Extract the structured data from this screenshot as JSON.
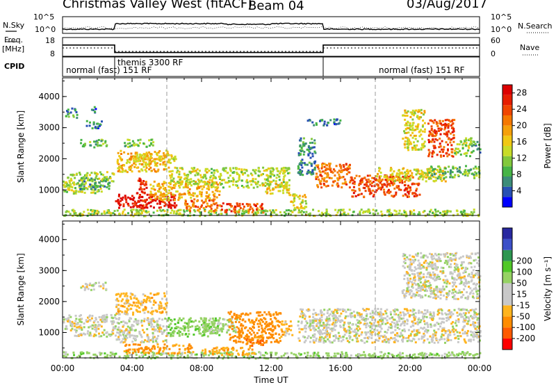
{
  "header": {
    "title": "Christmas Valley West (fitACF)",
    "beam": "Beam 04",
    "date": "03/Aug/2017"
  },
  "top_panels": {
    "nsky_label": "N.Sky",
    "nsearch_label": "N.Search",
    "noise_ticks": [
      "10^5",
      "10^0"
    ],
    "freq_label_1": "Freq.",
    "freq_label_2": "[MHz]",
    "freq_ticks": [
      "18",
      "8"
    ],
    "nave_label": "Nave",
    "nave_ticks": [
      "60",
      "0"
    ],
    "cpid_label": "CPID",
    "cpid_segments": [
      {
        "start": 0,
        "end": 3,
        "label": "normal (fast) 151 RF"
      },
      {
        "start": 3,
        "end": 15,
        "label": "themis 3300 RF"
      },
      {
        "start": 15,
        "end": 24,
        "label": "normal (fast) 151 RF"
      }
    ],
    "freq_mhz": [
      {
        "start": 0,
        "end": 3,
        "value": 14
      },
      {
        "start": 3,
        "end": 15,
        "value": 10
      },
      {
        "start": 15,
        "end": 24,
        "value": 14
      }
    ]
  },
  "color_palettes": {
    "power": [
      "#0000ff",
      "#2850b4",
      "#3c8c78",
      "#46b446",
      "#82c83c",
      "#c8dc28",
      "#f0c814",
      "#f5a00a",
      "#f57800",
      "#f04600",
      "#e61e00",
      "#dc0000"
    ],
    "velocity": [
      "#ff0000",
      "#ff5a00",
      "#ff8c00",
      "#ffb41e",
      "#c8c8c8",
      "#c8c8c8",
      "#96d264",
      "#50c828",
      "#2d9650",
      "#3c50c8",
      "#2828a0"
    ]
  },
  "chart_data": [
    {
      "type": "heatmap",
      "title": "",
      "xlabel": "Time UT",
      "ylabel": "Slant Range [km]",
      "x_ticks": [
        "00:00",
        "04:00",
        "08:00",
        "12:00",
        "16:00",
        "20:00",
        "00:00"
      ],
      "y_ticks": [
        "1000",
        "2000",
        "3000",
        "4000"
      ],
      "xlim_hours": [
        0,
        24
      ],
      "ylim_km": [
        180,
        4600
      ],
      "colorbar": {
        "label": "Power [dB]",
        "ticks": [
          "4",
          "8",
          "12",
          "16",
          "20",
          "24",
          "28"
        ],
        "range": [
          0,
          30
        ]
      },
      "regions": [
        {
          "t0": 0.0,
          "t1": 24.0,
          "r0": 190,
          "r1": 400,
          "value": 12
        },
        {
          "t0": 0.0,
          "t1": 2.2,
          "r0": 900,
          "r1": 1600,
          "value": 13
        },
        {
          "t0": 1.0,
          "t1": 2.5,
          "r0": 2400,
          "r1": 2650,
          "value": 9
        },
        {
          "t0": 0.1,
          "t1": 0.8,
          "r0": 3300,
          "r1": 3650,
          "value": 7
        },
        {
          "t0": 1.2,
          "t1": 2.2,
          "r0": 3000,
          "r1": 3250,
          "value": 6
        },
        {
          "t0": 1.6,
          "t1": 2.1,
          "r0": 3500,
          "r1": 3700,
          "value": 6
        },
        {
          "t0": 0.9,
          "t1": 2.7,
          "r0": 1050,
          "r1": 1450,
          "value": 8
        },
        {
          "t0": 2.2,
          "t1": 2.9,
          "r0": 1300,
          "r1": 1650,
          "value": 12
        },
        {
          "t0": 3.1,
          "t1": 6.0,
          "r0": 1600,
          "r1": 2300,
          "value": 17
        },
        {
          "t0": 3.5,
          "t1": 5.2,
          "r0": 2400,
          "r1": 2650,
          "value": 11
        },
        {
          "t0": 4.0,
          "t1": 6.5,
          "r0": 1900,
          "r1": 2200,
          "value": 16
        },
        {
          "t0": 4.2,
          "t1": 4.8,
          "r0": 400,
          "r1": 1400,
          "value": 26
        },
        {
          "t0": 3.0,
          "t1": 6.5,
          "r0": 450,
          "r1": 900,
          "value": 28
        },
        {
          "t0": 5.0,
          "t1": 9.0,
          "r0": 700,
          "r1": 1300,
          "value": 18
        },
        {
          "t0": 6.0,
          "t1": 8.5,
          "r0": 1200,
          "r1": 1750,
          "value": 14
        },
        {
          "t0": 8.5,
          "t1": 13.0,
          "r0": 1100,
          "r1": 1750,
          "value": 13
        },
        {
          "t0": 9.0,
          "t1": 11.5,
          "r0": 300,
          "r1": 600,
          "value": 24
        },
        {
          "t0": 7.0,
          "t1": 9.0,
          "r0": 350,
          "r1": 700,
          "value": 22
        },
        {
          "t0": 11.5,
          "t1": 13.0,
          "r0": 900,
          "r1": 1300,
          "value": 15
        },
        {
          "t0": 13.0,
          "t1": 14.0,
          "r0": 400,
          "r1": 900,
          "value": 15
        },
        {
          "t0": 13.5,
          "t1": 14.5,
          "r0": 1500,
          "r1": 2700,
          "value": 7
        },
        {
          "t0": 14.5,
          "t1": 16.5,
          "r0": 1100,
          "r1": 1900,
          "value": 22
        },
        {
          "t0": 16.5,
          "t1": 20.5,
          "r0": 800,
          "r1": 1500,
          "value": 24
        },
        {
          "t0": 18.0,
          "t1": 22.0,
          "r0": 1300,
          "r1": 1750,
          "value": 15
        },
        {
          "t0": 21.0,
          "t1": 24.0,
          "r0": 1400,
          "r1": 1800,
          "value": 10
        },
        {
          "t0": 19.5,
          "t1": 20.8,
          "r0": 2300,
          "r1": 3600,
          "value": 15
        },
        {
          "t0": 21.0,
          "t1": 22.5,
          "r0": 2100,
          "r1": 3300,
          "value": 24
        },
        {
          "t0": 22.5,
          "t1": 23.5,
          "r0": 2100,
          "r1": 2700,
          "value": 12
        },
        {
          "t0": 23.5,
          "t1": 24.0,
          "r0": 2200,
          "r1": 2600,
          "value": 8
        },
        {
          "t0": 14.0,
          "t1": 16.0,
          "r0": 3100,
          "r1": 3300,
          "value": 6
        }
      ]
    },
    {
      "type": "heatmap",
      "title": "",
      "xlabel": "Time UT",
      "ylabel": "Slant Range [km]",
      "x_ticks": [
        "00:00",
        "04:00",
        "08:00",
        "12:00",
        "16:00",
        "20:00",
        "00:00"
      ],
      "y_ticks": [
        "1000",
        "2000",
        "3000",
        "4000"
      ],
      "xlim_hours": [
        0,
        24
      ],
      "ylim_km": [
        180,
        4600
      ],
      "colorbar": {
        "label": "Velocity [m s⁻¹]",
        "ticks": [
          "-200",
          "-100",
          "-50",
          "-15",
          "15",
          "50",
          "100",
          "200"
        ],
        "range": [
          -250,
          250
        ]
      },
      "regions": [
        {
          "t0": 0.0,
          "t1": 24.0,
          "r0": 190,
          "r1": 400,
          "value": 30
        },
        {
          "t0": 0.0,
          "t1": 3.0,
          "r0": 900,
          "r1": 1600,
          "value": 0
        },
        {
          "t0": 1.0,
          "t1": 2.5,
          "r0": 2400,
          "r1": 2650,
          "value": 0
        },
        {
          "t0": 3.0,
          "t1": 6.0,
          "r0": 1600,
          "r1": 2300,
          "value": -30
        },
        {
          "t0": 3.0,
          "t1": 6.0,
          "r0": 700,
          "r1": 1500,
          "value": 0
        },
        {
          "t0": 3.5,
          "t1": 7.5,
          "r0": 350,
          "r1": 650,
          "value": -60
        },
        {
          "t0": 6.0,
          "t1": 9.0,
          "r0": 900,
          "r1": 1500,
          "value": 40
        },
        {
          "t0": 8.0,
          "t1": 10.0,
          "r0": 1000,
          "r1": 1500,
          "value": 20
        },
        {
          "t0": 9.5,
          "t1": 12.5,
          "r0": 700,
          "r1": 1700,
          "value": -70
        },
        {
          "t0": 10.5,
          "t1": 11.5,
          "r0": 600,
          "r1": 900,
          "value": -90
        },
        {
          "t0": 12.5,
          "t1": 13.2,
          "r0": 900,
          "r1": 1400,
          "value": -30
        },
        {
          "t0": 13.5,
          "t1": 24.0,
          "r0": 700,
          "r1": 1800,
          "value": 0
        },
        {
          "t0": 19.5,
          "t1": 24.0,
          "r0": 2100,
          "r1": 3600,
          "value": 0
        },
        {
          "t0": 8.0,
          "t1": 11.0,
          "r0": 300,
          "r1": 550,
          "value": -40
        }
      ]
    }
  ]
}
